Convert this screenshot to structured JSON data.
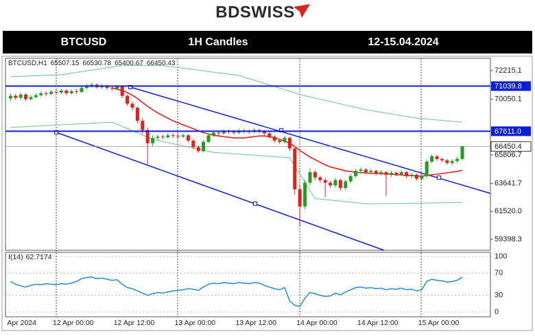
{
  "header": {
    "logo": "BDSWISS",
    "symbol": "BTCUSD",
    "timeframe": "1H Candles",
    "dates": "12-15.04.2024"
  },
  "chart_data": [
    {
      "type": "candlestick",
      "symbol": "BTCUSD,H1",
      "categories": [
        "Apr 2024",
        null,
        null,
        null,
        null,
        null,
        null,
        null,
        null,
        "12 Apr 00:00",
        null,
        null,
        null,
        null,
        null,
        null,
        null,
        null,
        null,
        null,
        null,
        "12 Apr 12:00",
        null,
        null,
        null,
        null,
        null,
        null,
        null,
        null,
        null,
        null,
        null,
        "13 Apr 00:00",
        null,
        null,
        null,
        null,
        null,
        null,
        null,
        null,
        null,
        null,
        null,
        "13 Apr 12:00",
        null,
        null,
        null,
        null,
        null,
        null,
        null,
        null,
        null,
        null,
        null,
        "14 Apr 00:00",
        null,
        null,
        null,
        null,
        null,
        null,
        null,
        null,
        null,
        null,
        null,
        "14 Apr 12:00",
        null,
        null,
        null,
        null,
        null,
        null,
        null,
        null,
        null,
        null,
        null,
        "15 Apr 00:00",
        null,
        null,
        null,
        null,
        null,
        null,
        null,
        null
      ],
      "open": [
        70100,
        70300,
        70150,
        70400,
        70050,
        70200,
        70350,
        70500,
        70450,
        70600,
        70550,
        70700,
        70500,
        70650,
        70600,
        70900,
        71000,
        71150,
        70950,
        71050,
        70900,
        70850,
        71000,
        70300,
        69700,
        69400,
        68400,
        67700,
        66700,
        67100,
        67200,
        67150,
        67300,
        67250,
        67200,
        67300,
        66900,
        66400,
        66100,
        66800,
        67300,
        67500,
        67450,
        67600,
        67550,
        67500,
        67650,
        67600,
        67550,
        67700,
        67600,
        67450,
        67200,
        66900,
        66800,
        67100,
        66300,
        63200,
        61900,
        63700,
        64500,
        64100,
        63900,
        63700,
        63500,
        63900,
        63300,
        63800,
        64200,
        64600,
        64700,
        64500,
        64600,
        64400,
        64500,
        64300,
        64450,
        64350,
        64500,
        64200,
        64300,
        64000,
        64200,
        65300,
        65700,
        65500,
        65400,
        65200,
        65350,
        65507.15
      ],
      "high": [
        70500,
        70450,
        70550,
        70500,
        70350,
        70500,
        70650,
        70650,
        70750,
        70800,
        70850,
        70800,
        70800,
        70800,
        71050,
        71200,
        71300,
        71250,
        71200,
        71150,
        71050,
        71100,
        71050,
        70400,
        69850,
        69500,
        68600,
        67900,
        67300,
        67350,
        67350,
        67450,
        67450,
        67400,
        67450,
        67400,
        67000,
        66550,
        66950,
        67450,
        67650,
        67650,
        67750,
        67750,
        67700,
        67800,
        67800,
        67750,
        67850,
        67800,
        67700,
        67550,
        67300,
        67000,
        67250,
        67200,
        66400,
        63500,
        63900,
        64800,
        64650,
        64250,
        64050,
        63850,
        64050,
        64000,
        63950,
        64350,
        64750,
        64850,
        64800,
        64750,
        64700,
        64650,
        64600,
        64600,
        64550,
        64650,
        64600,
        64450,
        64400,
        64350,
        65450,
        65850,
        65800,
        65600,
        65500,
        65500,
        65650,
        66530.78
      ],
      "low": [
        69900,
        70000,
        70000,
        69900,
        69950,
        70100,
        70250,
        70300,
        70350,
        70400,
        70450,
        70350,
        70400,
        70450,
        70500,
        70800,
        70900,
        70850,
        70850,
        70750,
        70700,
        70750,
        70150,
        69550,
        69200,
        68200,
        67400,
        65080,
        66500,
        66950,
        67000,
        67050,
        67100,
        67050,
        67100,
        66750,
        66250,
        65950,
        66000,
        66700,
        67200,
        67300,
        67350,
        67400,
        67350,
        67400,
        67450,
        67400,
        67450,
        67450,
        67300,
        67050,
        66750,
        66650,
        66700,
        66100,
        62800,
        60400,
        61700,
        63500,
        63900,
        63700,
        62600,
        63300,
        63350,
        63100,
        63150,
        63650,
        64100,
        64450,
        64350,
        64350,
        64250,
        64250,
        62700,
        64150,
        64200,
        64200,
        64050,
        64050,
        63850,
        63850,
        64100,
        65200,
        65350,
        65250,
        65050,
        65050,
        65200,
        65400.67
      ],
      "close": [
        70300,
        70150,
        70400,
        70050,
        70200,
        70350,
        70500,
        70450,
        70600,
        70550,
        70700,
        70500,
        70650,
        70600,
        70900,
        71000,
        71150,
        70950,
        71050,
        70900,
        70850,
        71000,
        70300,
        69700,
        69400,
        68400,
        67700,
        66700,
        67100,
        67200,
        67150,
        67300,
        67250,
        67200,
        67300,
        66900,
        66400,
        66100,
        66800,
        67300,
        67500,
        67450,
        67600,
        67550,
        67500,
        67650,
        67600,
        67550,
        67700,
        67600,
        67450,
        67200,
        66900,
        66800,
        67100,
        66300,
        63200,
        61900,
        63700,
        64500,
        64100,
        63900,
        63700,
        63500,
        63900,
        63300,
        63800,
        64200,
        64600,
        64700,
        64500,
        64600,
        64400,
        64500,
        64300,
        64450,
        64350,
        64500,
        64200,
        64300,
        64000,
        64200,
        65300,
        65700,
        65500,
        65400,
        65200,
        65350,
        65507.15,
        66450.43
      ],
      "up_color": "#1f9e1f",
      "down_color": "#e3211c",
      "series": [
        {
          "color": "#6cc489",
          "values": [
            71750,
            71765,
            71780,
            71795,
            71810,
            71825,
            71840,
            71855,
            71870,
            71885,
            71900,
            71960,
            72020,
            72080,
            72140,
            72200,
            72250,
            72310,
            72370,
            72430,
            72490,
            72550,
            72600,
            72600,
            72600,
            72600,
            72600,
            72600,
            72600,
            72600,
            72600,
            72550,
            72500,
            72450,
            72400,
            72350,
            72300,
            72250,
            72200,
            72150,
            72100,
            72050,
            72000,
            71950,
            71900,
            71850,
            71730,
            71610,
            71490,
            71370,
            71250,
            71130,
            71010,
            70890,
            70770,
            70650,
            70530,
            70400,
            70310,
            70220,
            70130,
            70040,
            69950,
            69870,
            69780,
            69690,
            69600,
            69510,
            69420,
            69340,
            69250,
            69185,
            69120,
            69055,
            68990,
            68925,
            68860,
            68795,
            68730,
            68665,
            68600,
            68570,
            68530,
            68500,
            68470,
            68430,
            68400,
            68370,
            68330,
            68300
          ]
        },
        {
          "color": "#6cc489",
          "values": [
            67900,
            67920,
            67940,
            67960,
            67980,
            68000,
            68020,
            68040,
            68060,
            68080,
            68100,
            68120,
            68140,
            68160,
            68180,
            68200,
            68220,
            68240,
            68260,
            68280,
            68300,
            68140,
            67980,
            67810,
            67650,
            67490,
            67330,
            67160,
            67000,
            66920,
            66830,
            66750,
            66670,
            66580,
            66500,
            66420,
            66330,
            66250,
            66170,
            66080,
            66000,
            65970,
            65950,
            65920,
            65890,
            65870,
            65840,
            65810,
            65790,
            65760,
            65730,
            65710,
            65680,
            65650,
            65630,
            65600,
            64980,
            64360,
            63740,
            63120,
            62500,
            62460,
            62420,
            62380,
            62340,
            62300,
            62260,
            62220,
            62180,
            62140,
            62100,
            62100,
            62110,
            62110,
            62120,
            62120,
            62130,
            62130,
            62140,
            62140,
            62150,
            62150,
            62160,
            62160,
            62170,
            62170,
            62180,
            62180,
            62190,
            62200
          ]
        },
        {
          "color": "#e3211c",
          "values": [
            null,
            null,
            null,
            null,
            null,
            null,
            null,
            null,
            null,
            null,
            null,
            null,
            null,
            null,
            null,
            null,
            null,
            null,
            null,
            null,
            70900,
            70800,
            70700,
            70550,
            70350,
            70100,
            69800,
            69500,
            69250,
            69000,
            68800,
            68600,
            68400,
            68250,
            68100,
            67950,
            67800,
            67650,
            67500,
            67400,
            67300,
            67250,
            67200,
            67150,
            67100,
            67100,
            67100,
            67150,
            67200,
            67250,
            67250,
            67200,
            67100,
            67000,
            66850,
            66700,
            66450,
            66150,
            65900,
            65650,
            65450,
            65250,
            65050,
            64900,
            64800,
            64700,
            64600,
            64550,
            64500,
            64450,
            64450,
            64400,
            64400,
            64400,
            64350,
            64350,
            64300,
            64300,
            64250,
            64250,
            64200,
            64200,
            64250,
            64300,
            64350,
            64400,
            64450,
            64500,
            64550,
            64650
          ]
        }
      ],
      "ylim": [
        58564.7,
        73152.9
      ],
      "yticks": [
        72215.1,
        70050.1,
        65806.7,
        63641.7,
        {
          "value": 61520.0,
          "label": "61520.0"
        },
        59398.3
      ],
      "hlines": [
        71039.8,
        {
          "value": 67611.0,
          "label": "67611.0"
        }
      ],
      "hline_color": "#0a1fd6",
      "last_price": {
        "value": 66450.43,
        "label": "66450.4"
      }
    },
    {
      "type": "line",
      "label": "I(14)",
      "values": [
        55,
        50,
        47,
        45,
        48,
        50,
        49,
        51,
        50,
        49,
        51,
        50,
        52,
        55,
        60,
        62,
        63,
        60,
        61,
        59,
        57,
        58,
        50,
        44,
        42,
        38,
        34,
        30,
        33,
        35,
        34,
        36,
        38,
        39,
        40,
        42,
        41,
        39,
        45,
        50,
        52,
        51,
        53,
        52,
        51,
        53,
        52,
        51,
        53,
        52,
        48,
        45,
        42,
        40,
        44,
        20,
        12,
        10,
        25,
        35,
        33,
        30,
        28,
        29,
        34,
        31,
        36,
        40,
        44,
        45,
        43,
        44,
        42,
        43,
        40,
        42,
        41,
        43,
        40,
        41,
        38,
        40,
        55,
        59,
        57,
        56,
        54,
        55,
        57,
        62.7174
      ],
      "color": "#2f8fd8",
      "ylim": [
        0,
        100
      ],
      "yticks": [
        100,
        70,
        30,
        0
      ]
    }
  ]
}
